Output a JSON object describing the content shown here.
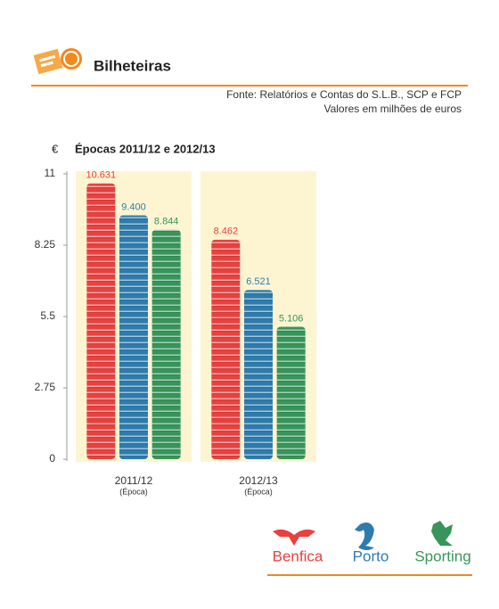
{
  "header": {
    "title": "Bilheteiras",
    "source": "Fonte: Relatórios e Contas do S.L.B., SCP e FCP",
    "units": "Valores em milhões de euros"
  },
  "chart_data": {
    "type": "bar",
    "title": "Épocas 2011/12 e 2012/13",
    "y_label": "€",
    "categories": [
      "2011/12",
      "2012/13"
    ],
    "x_sublabel": "(Época)",
    "ylim": [
      0,
      11
    ],
    "yticks": [
      0,
      2.75,
      5.5,
      8.25,
      11
    ],
    "series": [
      {
        "name": "Benfica",
        "color": "#e8413f",
        "values": [
          10.631,
          8.462
        ],
        "value_labels": [
          "10.631",
          "8.462"
        ]
      },
      {
        "name": "Porto",
        "color": "#2e7cad",
        "values": [
          9.4,
          6.521
        ],
        "value_labels": [
          "9.400",
          "6.521"
        ]
      },
      {
        "name": "Sporting",
        "color": "#37955a",
        "values": [
          8.844,
          5.106
        ],
        "value_labels": [
          "8.844",
          "5.106"
        ]
      }
    ]
  }
}
